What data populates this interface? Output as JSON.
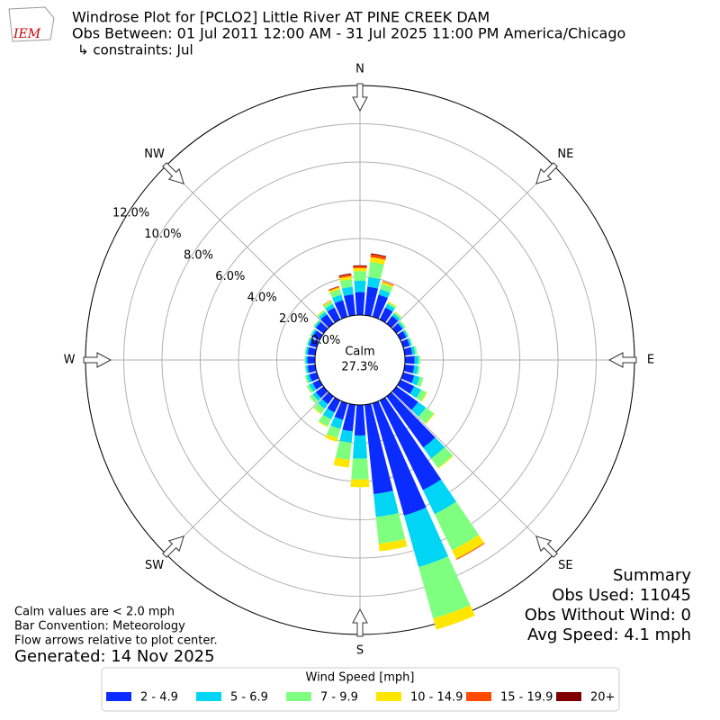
{
  "logo_text": "IEM",
  "chart_data": {
    "type": "windrose",
    "title": "Windrose Plot for [PCLO2] Little River  AT PINE CREEK DAM",
    "subtitle": "Obs Between: 01 Jul 2011 12:00 AM - 31 Jul 2025 11:00 PM America/Chicago",
    "constraints": "↳ constraints: Jul",
    "x": [
      0,
      10,
      20,
      30,
      40,
      50,
      60,
      70,
      80,
      90,
      100,
      110,
      120,
      130,
      140,
      150,
      160,
      170,
      180,
      190,
      200,
      210,
      220,
      230,
      240,
      250,
      260,
      270,
      280,
      290,
      300,
      310,
      320,
      330,
      340,
      350
    ],
    "direction_labels": [
      {
        "value": 0,
        "label": "N"
      },
      {
        "value": 45,
        "label": "NE"
      },
      {
        "value": 90,
        "label": "E"
      },
      {
        "value": 135,
        "label": "SE"
      },
      {
        "value": 180,
        "label": "S"
      },
      {
        "value": 225,
        "label": "SW"
      },
      {
        "value": 270,
        "label": "W"
      },
      {
        "value": 315,
        "label": "NW"
      }
    ],
    "ylim": [
      0,
      12
    ],
    "yticks": [
      {
        "value": 0,
        "label": "0.0%"
      },
      {
        "value": 2,
        "label": "2.0%"
      },
      {
        "value": 4,
        "label": "4.0%"
      },
      {
        "value": 6,
        "label": "6.0%"
      },
      {
        "value": 8,
        "label": "8.0%"
      },
      {
        "value": 10,
        "label": "10.0%"
      },
      {
        "value": 12,
        "label": "12.0%"
      }
    ],
    "grid": true,
    "calm_label": "Calm",
    "calm_value": 27.3,
    "calm_value_label": "27.3%",
    "legend_title": "Wind Speed [mph]",
    "series": [
      {
        "name": "2 - 4.9",
        "color": "#0a2cff",
        "values": [
          1.2,
          1.5,
          1.2,
          0.7,
          0.5,
          0.4,
          0.35,
          0.35,
          0.4,
          0.5,
          0.5,
          0.6,
          0.8,
          1.4,
          3.3,
          5.2,
          6.1,
          4.7,
          1.6,
          1.4,
          0.9,
          0.7,
          0.5,
          0.5,
          0.4,
          0.4,
          0.4,
          0.4,
          0.4,
          0.4,
          0.4,
          0.5,
          0.6,
          0.7,
          0.9,
          1.1
        ]
      },
      {
        "name": "5 - 6.9",
        "color": "#00d5f5",
        "values": [
          0.6,
          0.5,
          0.3,
          0.2,
          0.15,
          0.1,
          0.1,
          0.1,
          0.15,
          0.2,
          0.2,
          0.3,
          0.4,
          0.5,
          0.7,
          1.4,
          2.8,
          1.2,
          1.2,
          0.6,
          0.5,
          0.4,
          0.3,
          0.2,
          0.2,
          0.15,
          0.1,
          0.1,
          0.1,
          0.1,
          0.1,
          0.1,
          0.15,
          0.2,
          0.3,
          0.4
        ]
      },
      {
        "name": "7 - 9.9",
        "color": "#7fff7f",
        "values": [
          0.5,
          0.8,
          0.3,
          0.1,
          0.1,
          0.1,
          0.05,
          0.05,
          0.1,
          0.1,
          0.1,
          0.2,
          0.3,
          0.5,
          0.6,
          2.1,
          2.8,
          1.4,
          1.1,
          0.9,
          0.5,
          0.4,
          0.3,
          0.2,
          0.15,
          0.1,
          0.05,
          0.05,
          0.05,
          0.05,
          0.05,
          0.05,
          0.1,
          0.15,
          0.3,
          0.4
        ]
      },
      {
        "name": "10 - 14.9",
        "color": "#ffe600",
        "values": [
          0.15,
          0.25,
          0.1,
          0.05,
          0.03,
          0,
          0,
          0,
          0,
          0,
          0,
          0,
          0.05,
          0.05,
          0.05,
          0.5,
          0.6,
          0.4,
          0.4,
          0.4,
          0.2,
          0.05,
          0.05,
          0,
          0,
          0,
          0,
          0,
          0,
          0,
          0,
          0.02,
          0.03,
          0.05,
          0.1,
          0.15
        ]
      },
      {
        "name": "15 - 19.9",
        "color": "#ff4a00",
        "values": [
          0.1,
          0.15,
          0.05,
          0,
          0,
          0,
          0,
          0,
          0,
          0,
          0,
          0,
          0,
          0,
          0,
          0.05,
          0,
          0,
          0,
          0,
          0,
          0,
          0,
          0,
          0,
          0,
          0,
          0,
          0,
          0,
          0,
          0,
          0,
          0.02,
          0.05,
          0.1
        ]
      },
      {
        "name": "20+",
        "color": "#800000",
        "values": [
          0.05,
          0.05,
          0,
          0,
          0,
          0,
          0,
          0,
          0,
          0,
          0,
          0,
          0,
          0,
          0,
          0,
          0,
          0,
          0,
          0,
          0,
          0,
          0,
          0,
          0,
          0,
          0,
          0,
          0,
          0,
          0,
          0,
          0,
          0,
          0.02,
          0.05
        ]
      }
    ],
    "summary": [
      "Summary",
      "Obs Used: 11045",
      "Obs Without Wind: 0",
      "Avg Speed: 4.1 mph"
    ],
    "notes": [
      "Calm values are < 2.0 mph",
      "Bar Convention: Meteorology",
      "Flow arrows relative to plot center."
    ],
    "generated": "Generated: 14 Nov 2025"
  }
}
